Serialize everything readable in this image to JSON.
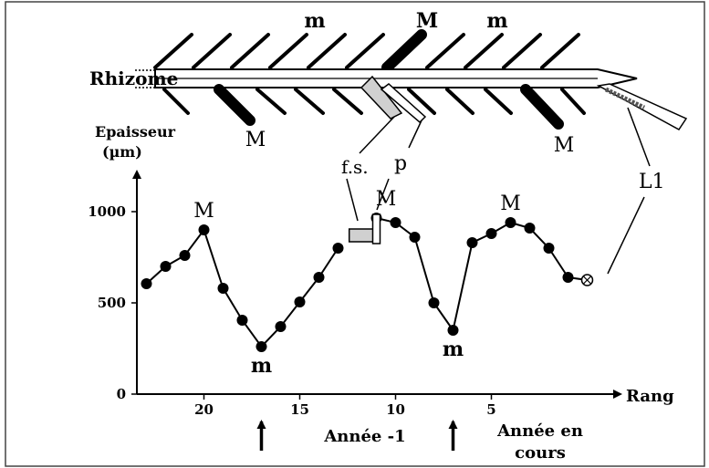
{
  "rhizome": {
    "label": "Rhizome",
    "top_marks": [
      "m",
      "M",
      "m"
    ],
    "bottom_marks": [
      "M",
      "M"
    ],
    "callouts": {
      "fs": "f.s.",
      "p": "p",
      "l1": "L1"
    }
  },
  "chart_data": {
    "type": "line",
    "title": "",
    "ylabel": "Epaisseur (µm)",
    "ylabel_lines": [
      "Epaisseur",
      "(µm)"
    ],
    "xlabel": "Rang",
    "ylim": [
      0,
      1000
    ],
    "xlim": [
      23.5,
      0
    ],
    "x_ticks": [
      20,
      15,
      10,
      5
    ],
    "y_ticks": [
      0,
      500,
      1000
    ],
    "series": [
      {
        "x": [
          23,
          22,
          21,
          20,
          19,
          18,
          17,
          16,
          15,
          14,
          13
        ],
        "y": [
          605,
          700,
          760,
          900,
          580,
          405,
          260,
          370,
          505,
          640,
          800
        ]
      },
      {
        "x": [
          11,
          10,
          9,
          8,
          7,
          6,
          5,
          4,
          3,
          2,
          1
        ],
        "y": [
          965,
          940,
          860,
          500,
          350,
          830,
          880,
          940,
          910,
          800,
          640
        ]
      }
    ],
    "l1_point": {
      "x": 0,
      "y": 625
    },
    "bar_markers": [
      {
        "x": 11.8,
        "y": 880
      },
      {
        "x": 11,
        "y": 975
      }
    ],
    "annotations": [
      {
        "text": "M",
        "x": 20,
        "y": 900
      },
      {
        "text": "m",
        "x": 17,
        "y": 260
      },
      {
        "text": "M",
        "x": 10.5,
        "y": 965
      },
      {
        "text": "m",
        "x": 7,
        "y": 350
      },
      {
        "text": "M",
        "x": 4,
        "y": 940
      }
    ],
    "year_markers": [
      {
        "x": 17,
        "label": ""
      },
      {
        "x": 7,
        "label": ""
      }
    ],
    "year_labels": [
      "Année -1",
      "Année en",
      "cours"
    ]
  }
}
